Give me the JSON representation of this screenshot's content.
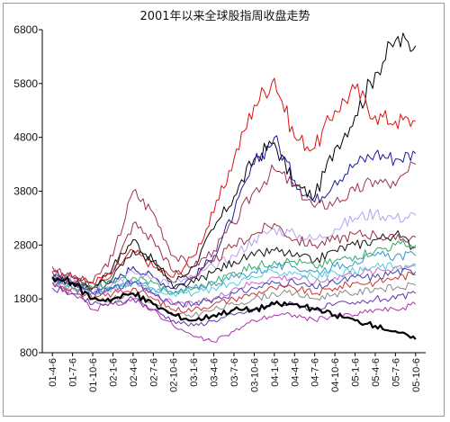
{
  "chart_data": {
    "type": "line",
    "title": "2001年以来全球股指周收盘走势",
    "xlabel": "",
    "ylabel": "",
    "ylim": [
      800,
      6800
    ],
    "y_ticks": [
      800,
      1800,
      2800,
      3800,
      4800,
      5800,
      6800
    ],
    "x_categories": [
      "01-4-6",
      "01-7-6",
      "01-10-6",
      "02-1-6",
      "02-4-6",
      "02-7-6",
      "02-10-6",
      "03-1-6",
      "03-4-6",
      "03-7-6",
      "03-10-6",
      "04-1-6",
      "04-4-6",
      "04-7-6",
      "04-10-6",
      "05-1-6",
      "05-4-6",
      "05-7-6",
      "05-10-6"
    ],
    "grid": false,
    "legend": "none",
    "series": [
      {
        "color": "#000000",
        "width": 1.0,
        "values": [
          2200,
          2100,
          2000,
          2400,
          2900,
          2500,
          2100,
          2400,
          3100,
          3700,
          4400,
          4700,
          3900,
          3700,
          4600,
          5200,
          6000,
          6600,
          6500
        ]
      },
      {
        "color": "#dd1111",
        "width": 1.0,
        "values": [
          2300,
          2200,
          2100,
          2300,
          2700,
          2400,
          2200,
          2600,
          3400,
          4400,
          5400,
          5900,
          4800,
          4600,
          5300,
          5700,
          5200,
          5100,
          5100
        ]
      },
      {
        "color": "#1a1a9a",
        "width": 1.0,
        "values": [
          2200,
          2100,
          2000,
          2100,
          2400,
          2200,
          2000,
          2200,
          2600,
          3400,
          4300,
          4800,
          4000,
          3600,
          4000,
          4300,
          4500,
          4400,
          4500
        ]
      },
      {
        "color": "#993355",
        "width": 1.0,
        "values": [
          2400,
          2200,
          2100,
          2600,
          3800,
          3400,
          2600,
          2400,
          2700,
          3200,
          3800,
          4200,
          3900,
          3500,
          3600,
          3800,
          4000,
          3900,
          4300
        ]
      },
      {
        "color": "#b8a0f0",
        "width": 1.0,
        "values": [
          2300,
          2200,
          2000,
          2100,
          2300,
          2200,
          2100,
          2200,
          2400,
          2600,
          2900,
          3100,
          3000,
          2900,
          3100,
          3300,
          3400,
          3300,
          3350
        ]
      },
      {
        "color": "#993344",
        "width": 1.0,
        "values": [
          2300,
          2200,
          2000,
          2300,
          3200,
          2900,
          2300,
          2200,
          2500,
          2800,
          3000,
          3200,
          2900,
          2800,
          2900,
          3000,
          3000,
          2900,
          2950
        ]
      },
      {
        "color": "#111111",
        "width": 1.0,
        "values": [
          2200,
          2100,
          2000,
          2200,
          2700,
          2500,
          2000,
          2100,
          2300,
          2500,
          2600,
          2700,
          2600,
          2500,
          2700,
          2800,
          2900,
          3000,
          2750
        ]
      },
      {
        "color": "#33aa66",
        "width": 1.0,
        "values": [
          2200,
          2100,
          2000,
          2100,
          2200,
          2100,
          1900,
          2000,
          2100,
          2300,
          2400,
          2500,
          2500,
          2400,
          2500,
          2600,
          2700,
          2800,
          2800
        ]
      },
      {
        "color": "#3399cc",
        "width": 1.0,
        "values": [
          2100,
          2000,
          1900,
          2000,
          2100,
          2000,
          1900,
          2000,
          2100,
          2200,
          2300,
          2400,
          2400,
          2300,
          2400,
          2500,
          2600,
          2600,
          2600
        ]
      },
      {
        "color": "#cc66cc",
        "width": 1.0,
        "values": [
          2200,
          2100,
          1900,
          2000,
          2100,
          1900,
          1700,
          1700,
          1800,
          2000,
          2100,
          2200,
          2200,
          2100,
          2200,
          2300,
          2300,
          2400,
          2450
        ]
      },
      {
        "color": "#55ccdd",
        "width": 1.0,
        "values": [
          2100,
          2000,
          1900,
          2000,
          2100,
          2000,
          1900,
          1900,
          2000,
          2100,
          2200,
          2300,
          2300,
          2200,
          2300,
          2300,
          2400,
          2400,
          2400
        ]
      },
      {
        "color": "#4444aa",
        "width": 1.0,
        "values": [
          2200,
          2100,
          1900,
          2000,
          2100,
          1900,
          1700,
          1700,
          1800,
          1900,
          2000,
          2100,
          2100,
          2000,
          2100,
          2200,
          2200,
          2300,
          2300
        ]
      },
      {
        "color": "#cc3333",
        "width": 1.0,
        "values": [
          2100,
          2000,
          1800,
          1900,
          2000,
          1800,
          1600,
          1600,
          1700,
          1800,
          1900,
          2000,
          2000,
          1900,
          2000,
          2100,
          2100,
          2200,
          2250
        ]
      },
      {
        "color": "#888888",
        "width": 1.0,
        "values": [
          2100,
          2000,
          1800,
          1800,
          1900,
          1700,
          1500,
          1500,
          1600,
          1700,
          1800,
          1900,
          1900,
          1800,
          1900,
          1900,
          2000,
          2000,
          2050
        ]
      },
      {
        "color": "#6633aa",
        "width": 1.0,
        "values": [
          2000,
          1900,
          1700,
          1700,
          1800,
          1600,
          1400,
          1300,
          1400,
          1500,
          1600,
          1700,
          1700,
          1600,
          1700,
          1700,
          1800,
          1800,
          1900
        ]
      },
      {
        "color": "#aa33aa",
        "width": 1.0,
        "values": [
          2100,
          1900,
          1600,
          1700,
          1800,
          1600,
          1300,
          1100,
          1000,
          1200,
          1400,
          1500,
          1500,
          1400,
          1500,
          1500,
          1600,
          1600,
          1700
        ]
      },
      {
        "color": "#000000",
        "width": 2.2,
        "values": [
          2200,
          2100,
          1800,
          1800,
          1900,
          1700,
          1500,
          1400,
          1500,
          1600,
          1600,
          1700,
          1700,
          1600,
          1500,
          1400,
          1300,
          1200,
          1050
        ]
      }
    ]
  }
}
